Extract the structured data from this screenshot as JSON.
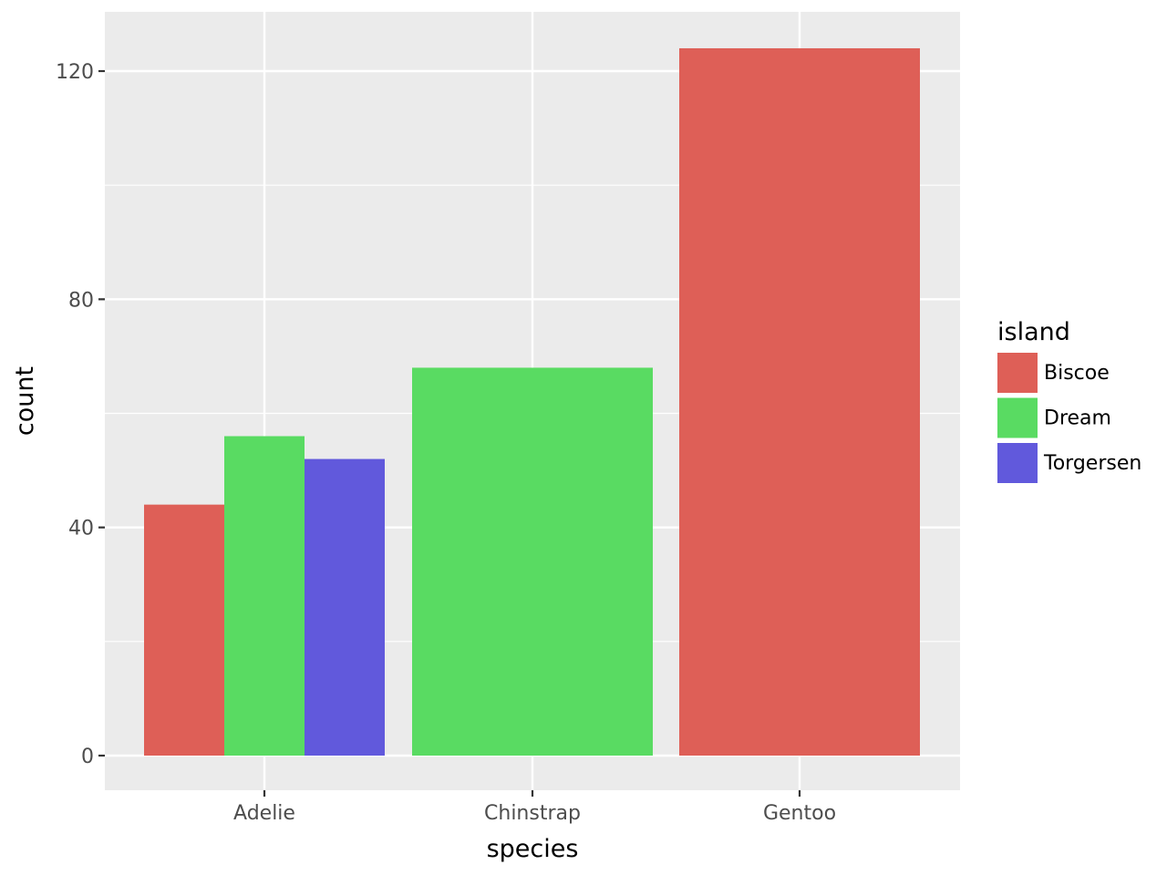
{
  "chart_data": {
    "type": "bar",
    "title": "",
    "xlabel": "species",
    "ylabel": "count",
    "categories": [
      "Adelie",
      "Chinstrap",
      "Gentoo"
    ],
    "ylim": [
      0,
      130
    ],
    "y_ticks": [
      0,
      40,
      80,
      120
    ],
    "y_tick_labels": [
      "0",
      "40",
      "80",
      "120"
    ],
    "grid": true,
    "legend": {
      "title": "island",
      "position": "right"
    },
    "series": [
      {
        "name": "Biscoe",
        "color": "#de5f57",
        "values": [
          44,
          null,
          124
        ]
      },
      {
        "name": "Dream",
        "color": "#59db62",
        "values": [
          56,
          68,
          null
        ]
      },
      {
        "name": "Torgersen",
        "color": "#6159dc",
        "values": [
          52,
          null,
          null
        ]
      }
    ],
    "panel_background": "#ebebeb",
    "grid_color": "#ffffff"
  }
}
